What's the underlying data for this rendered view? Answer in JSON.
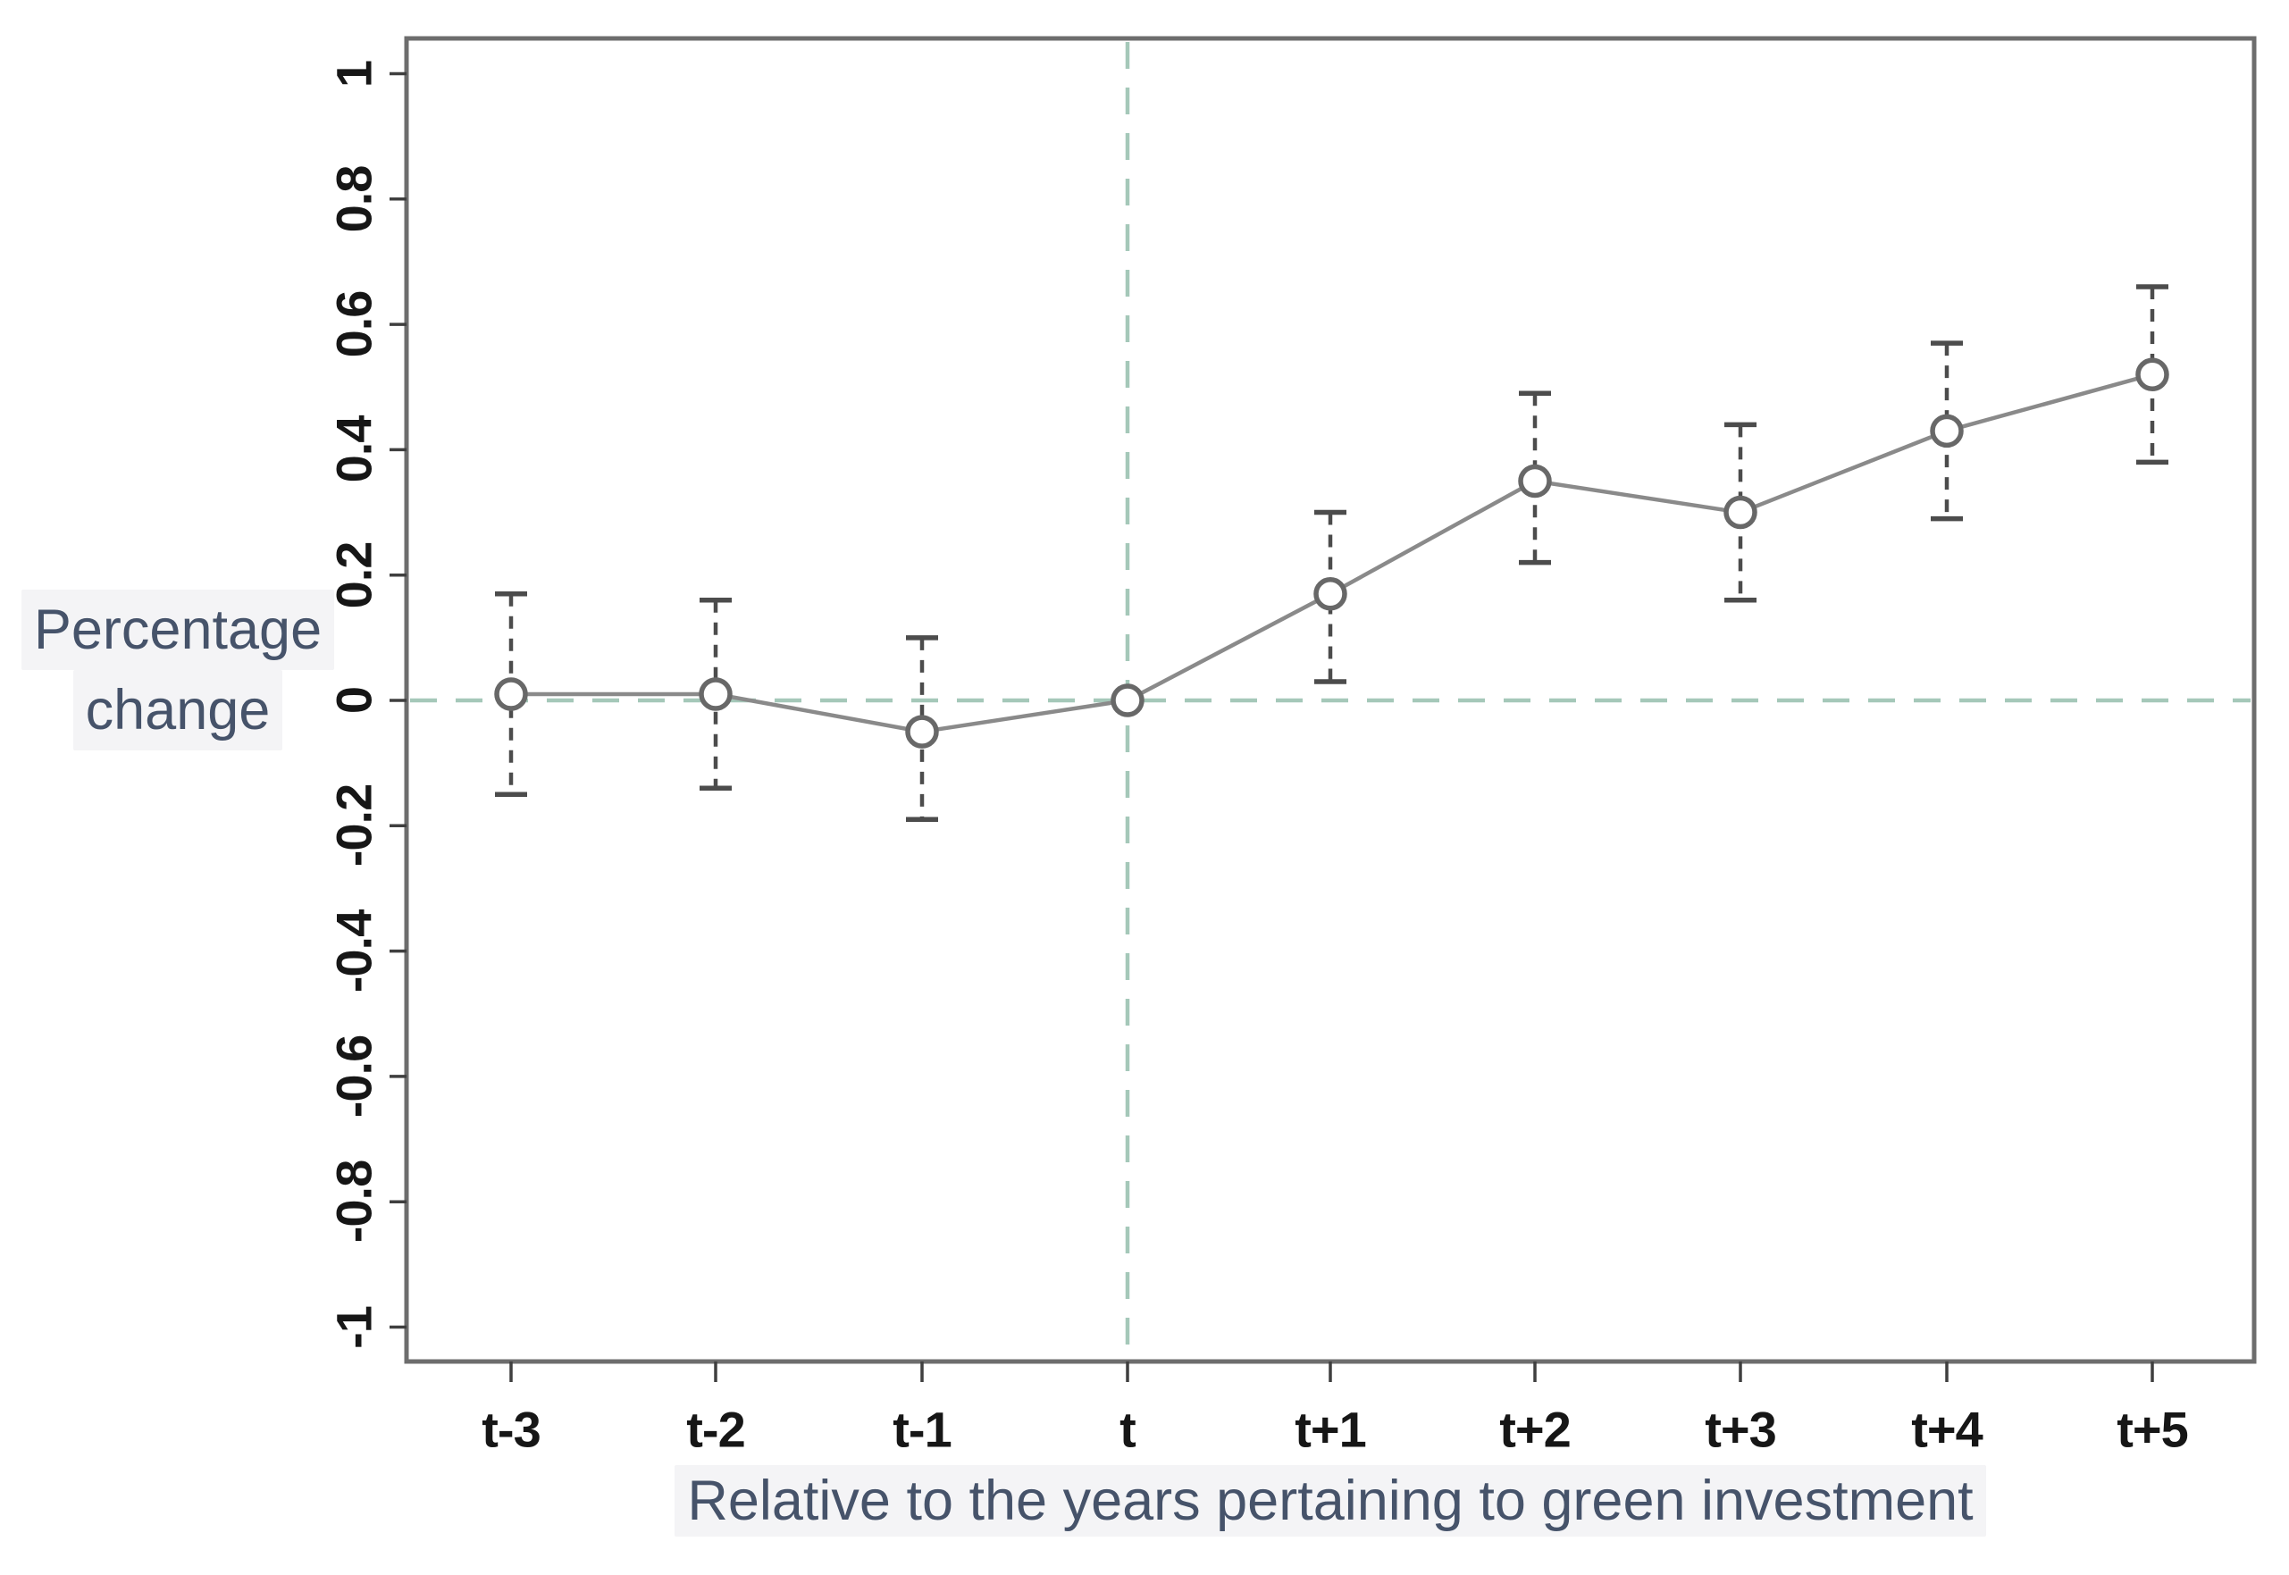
{
  "chart_data": {
    "type": "line",
    "error_bars": true,
    "title": "",
    "xlabel": "Relative to the years pertaining to green investment",
    "ylabel": "Percentage change",
    "ylabel_line1": "Percentage",
    "ylabel_line2": "change",
    "categories": [
      "t-3",
      "t-2",
      "t-1",
      "t",
      "t+1",
      "t+2",
      "t+3",
      "t+4",
      "t+5"
    ],
    "values": [
      0.01,
      0.01,
      -0.05,
      0.0,
      0.17,
      0.35,
      0.3,
      0.43,
      0.52
    ],
    "ci_low": [
      -0.15,
      -0.14,
      -0.19,
      null,
      0.03,
      0.22,
      0.16,
      0.29,
      0.38
    ],
    "ci_high": [
      0.17,
      0.16,
      0.1,
      null,
      0.3,
      0.49,
      0.44,
      0.57,
      0.66
    ],
    "ylim": [
      -1,
      1
    ],
    "yticks": [
      1,
      0.8,
      0.6,
      0.4,
      0.2,
      0,
      -0.2,
      -0.4,
      -0.6,
      -0.8,
      -1
    ],
    "ytick_labels": [
      "1",
      "0.8",
      "0.6",
      "0.4",
      "0.2",
      "0",
      "-0.2",
      "-0.4",
      "-0.6",
      "-0.8",
      "-1"
    ],
    "reference_lines": {
      "horizontal_at": 0,
      "vertical_at_category": "t"
    },
    "grid": false,
    "legend": "none",
    "colors": {
      "series_line": "#8a8a8a",
      "marker_ring": "#686868",
      "marker_fill": "#ffffff",
      "error_bar": "#4c4c4c",
      "reference_dash": "#a5c8b9",
      "axis_border": "#6d6d6d",
      "tick_mark": "#3f3f3f",
      "tick_text": "#161616",
      "axis_title_text": "#46536a",
      "label_highlight_bg": "#f4f4f6"
    }
  }
}
